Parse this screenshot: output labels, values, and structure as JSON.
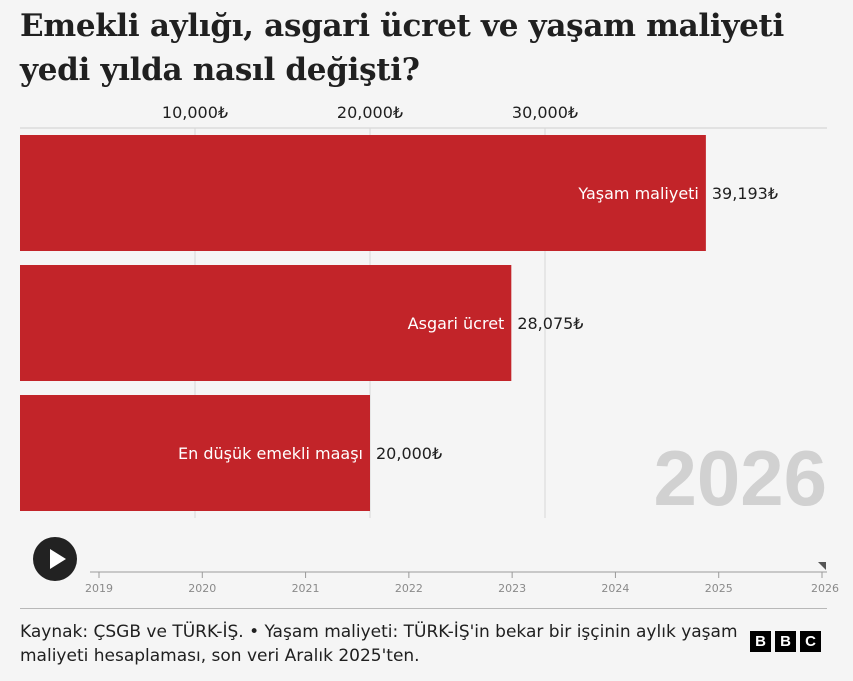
{
  "title": "Emekli aylığı, asgari ücret ve yaşam maliyeti yedi yılda nasıl değişti?",
  "chart_data": {
    "type": "bar",
    "orientation": "horizontal",
    "year": "2026",
    "categories": [
      "Yaşam maliyeti",
      "Asgari ücret",
      "En düşük emekli maaşı"
    ],
    "values": [
      39193,
      28075,
      20000
    ],
    "value_labels": [
      "39,193₺",
      "28,075₺",
      "20,000₺"
    ],
    "x_ticks": [
      10000,
      20000,
      30000
    ],
    "x_tick_labels": [
      "10,000₺",
      "20,000₺",
      "30,000₺"
    ],
    "xlim": [
      0,
      40000
    ],
    "grid": true,
    "bar_color": "#c22429"
  },
  "timeline": {
    "years": [
      "2019",
      "2020",
      "2021",
      "2022",
      "2023",
      "2024",
      "2025",
      "2026"
    ],
    "current": "2026",
    "play_icon": "play-icon"
  },
  "footer": {
    "source": "Kaynak: ÇSGB ve TÜRK-İŞ. • Yaşam maliyeti: TÜRK-İŞ'in bekar bir işçinin aylık yaşam maliyeti hesaplaması, son veri Aralık 2025'ten.",
    "logo": [
      "B",
      "B",
      "C"
    ]
  }
}
